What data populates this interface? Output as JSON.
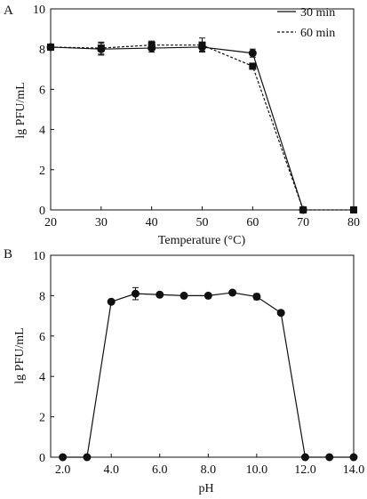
{
  "panels": [
    {
      "letter": "A"
    },
    {
      "letter": "B"
    }
  ],
  "chart_data": [
    {
      "type": "line",
      "xlabel": "Temperature (°C)",
      "ylabel": "lg PFU/mL",
      "xlim": [
        20,
        80
      ],
      "ylim": [
        0,
        10
      ],
      "xticks": [
        20,
        30,
        40,
        50,
        60,
        70,
        80
      ],
      "yticks": [
        0,
        2,
        4,
        6,
        8,
        10
      ],
      "legend_position": "top-right",
      "grid": false,
      "series": [
        {
          "name": "30 min",
          "line_style": "solid",
          "marker": "circle",
          "x": [
            20,
            30,
            40,
            50,
            60,
            70
          ],
          "y": [
            8.1,
            8.0,
            8.05,
            8.1,
            7.8,
            0
          ],
          "err": [
            0.15,
            0.3,
            0.2,
            0.2,
            0.2,
            0
          ]
        },
        {
          "name": "60 min",
          "line_style": "dashed",
          "marker": "square",
          "x": [
            20,
            30,
            40,
            50,
            60,
            70,
            80
          ],
          "y": [
            8.1,
            8.05,
            8.2,
            8.2,
            7.15,
            0,
            0
          ],
          "err": [
            0.15,
            0.3,
            0.2,
            0.35,
            0.15,
            0,
            0
          ]
        }
      ]
    },
    {
      "type": "line",
      "xlabel": "pH",
      "ylabel": "lg PFU/mL",
      "xlim": [
        1.5,
        14.0
      ],
      "ylim": [
        0,
        10
      ],
      "xticks": [
        2.0,
        4.0,
        6.0,
        8.0,
        10.0,
        12.0,
        14.0
      ],
      "xtick_labels": [
        "2.0",
        "4.0",
        "6.0",
        "8.0",
        "10.0",
        "12.0",
        "14.0"
      ],
      "yticks": [
        0,
        2,
        4,
        6,
        8,
        10
      ],
      "grid": false,
      "series": [
        {
          "line_style": "solid",
          "marker": "circle",
          "x": [
            2,
            3,
            4,
            5,
            6,
            7,
            8,
            9,
            10,
            11,
            12,
            13,
            14
          ],
          "y": [
            0,
            0,
            7.7,
            8.1,
            8.05,
            8.0,
            8.0,
            8.15,
            7.95,
            7.15,
            0,
            0,
            0
          ],
          "err": [
            0,
            0,
            0,
            0.3,
            0.1,
            0.1,
            0.1,
            0.1,
            0.15,
            0.1,
            0,
            0,
            0
          ]
        }
      ]
    }
  ]
}
